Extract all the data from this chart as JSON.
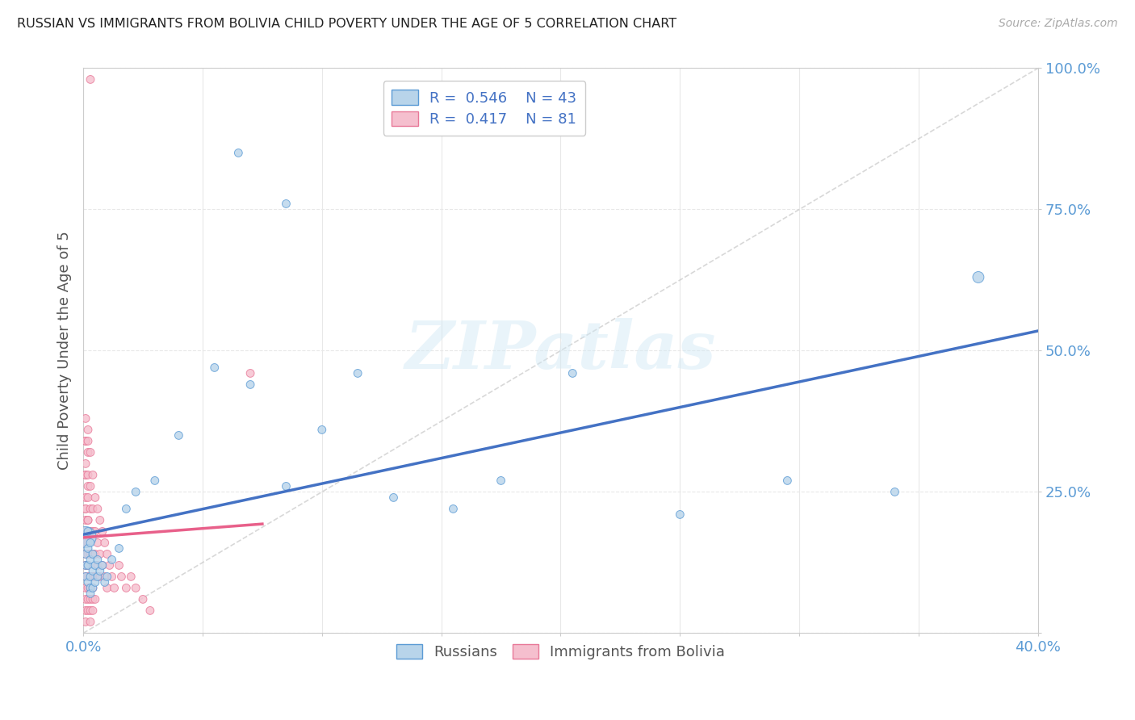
{
  "title": "RUSSIAN VS IMMIGRANTS FROM BOLIVIA CHILD POVERTY UNDER THE AGE OF 5 CORRELATION CHART",
  "source": "Source: ZipAtlas.com",
  "ylabel": "Child Poverty Under the Age of 5",
  "xlim": [
    0.0,
    0.4
  ],
  "ylim": [
    0.0,
    1.0
  ],
  "xtick_positions": [
    0.0,
    0.05,
    0.1,
    0.15,
    0.2,
    0.25,
    0.3,
    0.35,
    0.4
  ],
  "xticklabels": [
    "0.0%",
    "",
    "",
    "",
    "",
    "",
    "",
    "",
    "40.0%"
  ],
  "ytick_positions": [
    0.0,
    0.25,
    0.5,
    0.75,
    1.0
  ],
  "yticklabels": [
    "",
    "25.0%",
    "50.0%",
    "75.0%",
    "100.0%"
  ],
  "watermark": "ZIPatlas",
  "blue_color": "#b8d4ea",
  "pink_color": "#f5bfce",
  "blue_edge_color": "#5b9bd5",
  "pink_edge_color": "#e87898",
  "blue_line_color": "#4472c4",
  "pink_line_color": "#e8608a",
  "ref_line_color": "#c8c8c8",
  "title_color": "#222222",
  "tick_color": "#5b9bd5",
  "ylabel_color": "#555555",
  "grid_color": "#e8e8e8",
  "background_color": "#ffffff",
  "legend_r1": "0.546",
  "legend_n1": "43",
  "legend_r2": "0.417",
  "legend_n2": "81",
  "russians_x": [
    0.001,
    0.001,
    0.001,
    0.001,
    0.002,
    0.002,
    0.002,
    0.002,
    0.003,
    0.003,
    0.003,
    0.003,
    0.003,
    0.004,
    0.004,
    0.004,
    0.005,
    0.005,
    0.006,
    0.006,
    0.007,
    0.008,
    0.009,
    0.01,
    0.012,
    0.015,
    0.018,
    0.022,
    0.03,
    0.04,
    0.055,
    0.07,
    0.085,
    0.1,
    0.115,
    0.13,
    0.155,
    0.175,
    0.205,
    0.25,
    0.295,
    0.34,
    0.375
  ],
  "russians_y": [
    0.17,
    0.14,
    0.12,
    0.1,
    0.18,
    0.15,
    0.12,
    0.09,
    0.16,
    0.13,
    0.1,
    0.08,
    0.07,
    0.14,
    0.11,
    0.08,
    0.12,
    0.09,
    0.13,
    0.1,
    0.11,
    0.12,
    0.09,
    0.1,
    0.13,
    0.15,
    0.22,
    0.25,
    0.27,
    0.35,
    0.47,
    0.44,
    0.26,
    0.36,
    0.46,
    0.24,
    0.22,
    0.27,
    0.46,
    0.21,
    0.27,
    0.25,
    0.63
  ],
  "russians_sizes": [
    350,
    50,
    50,
    50,
    50,
    50,
    50,
    50,
    50,
    50,
    50,
    50,
    50,
    50,
    50,
    50,
    50,
    50,
    50,
    50,
    50,
    50,
    50,
    50,
    50,
    50,
    50,
    50,
    50,
    50,
    50,
    50,
    50,
    50,
    50,
    50,
    50,
    50,
    50,
    50,
    50,
    50,
    100
  ],
  "bolivia_x": [
    0.001,
    0.001,
    0.001,
    0.001,
    0.001,
    0.001,
    0.001,
    0.001,
    0.001,
    0.001,
    0.001,
    0.001,
    0.001,
    0.001,
    0.001,
    0.001,
    0.001,
    0.001,
    0.001,
    0.001,
    0.002,
    0.002,
    0.002,
    0.002,
    0.002,
    0.002,
    0.002,
    0.002,
    0.002,
    0.002,
    0.002,
    0.002,
    0.002,
    0.002,
    0.002,
    0.003,
    0.003,
    0.003,
    0.003,
    0.003,
    0.003,
    0.003,
    0.003,
    0.003,
    0.003,
    0.004,
    0.004,
    0.004,
    0.004,
    0.004,
    0.004,
    0.004,
    0.004,
    0.005,
    0.005,
    0.005,
    0.005,
    0.005,
    0.006,
    0.006,
    0.006,
    0.007,
    0.007,
    0.007,
    0.008,
    0.008,
    0.009,
    0.009,
    0.01,
    0.01,
    0.011,
    0.012,
    0.013,
    0.015,
    0.016,
    0.018,
    0.02,
    0.022,
    0.025,
    0.028,
    0.07
  ],
  "bolivia_y": [
    0.38,
    0.34,
    0.3,
    0.28,
    0.24,
    0.22,
    0.2,
    0.18,
    0.16,
    0.14,
    0.12,
    0.1,
    0.08,
    0.06,
    0.04,
    0.02,
    0.34,
    0.28,
    0.22,
    0.16,
    0.36,
    0.32,
    0.28,
    0.24,
    0.2,
    0.16,
    0.12,
    0.08,
    0.06,
    0.04,
    0.34,
    0.26,
    0.2,
    0.14,
    0.1,
    0.32,
    0.26,
    0.22,
    0.18,
    0.14,
    0.1,
    0.08,
    0.06,
    0.04,
    0.02,
    0.28,
    0.22,
    0.18,
    0.14,
    0.1,
    0.08,
    0.06,
    0.04,
    0.24,
    0.18,
    0.14,
    0.1,
    0.06,
    0.22,
    0.16,
    0.12,
    0.2,
    0.14,
    0.1,
    0.18,
    0.12,
    0.16,
    0.1,
    0.14,
    0.08,
    0.12,
    0.1,
    0.08,
    0.12,
    0.1,
    0.08,
    0.1,
    0.08,
    0.06,
    0.04,
    0.46
  ],
  "bolivia_sizes": [
    50,
    50,
    50,
    50,
    50,
    50,
    50,
    50,
    50,
    50,
    50,
    50,
    50,
    50,
    50,
    50,
    50,
    50,
    50,
    50,
    50,
    50,
    50,
    50,
    50,
    50,
    50,
    50,
    50,
    50,
    50,
    50,
    50,
    50,
    50,
    50,
    50,
    50,
    50,
    50,
    50,
    50,
    50,
    50,
    50,
    50,
    50,
    50,
    50,
    50,
    50,
    50,
    50,
    50,
    50,
    50,
    50,
    50,
    50,
    50,
    50,
    50,
    50,
    50,
    50,
    50,
    50,
    50,
    50,
    50,
    50,
    50,
    50,
    50,
    50,
    50,
    50,
    50,
    50,
    50,
    50
  ],
  "pink_outlier_x": [
    0.003
  ],
  "pink_outlier_y": [
    0.98
  ],
  "pink_outlier_size": [
    50
  ],
  "blue_high1_x": [
    0.065
  ],
  "blue_high1_y": [
    0.85
  ],
  "blue_high2_x": [
    0.085
  ],
  "blue_high2_y": [
    0.76
  ]
}
